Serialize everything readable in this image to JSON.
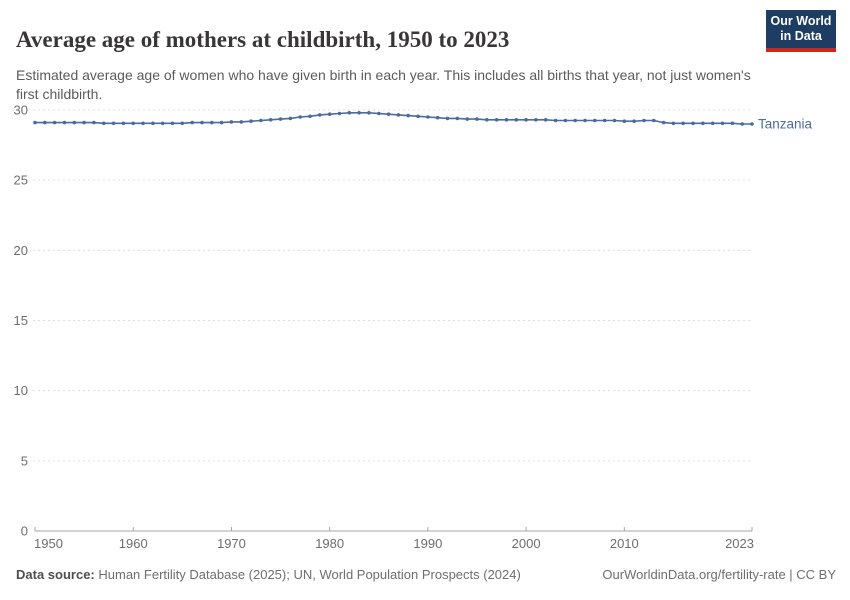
{
  "header": {
    "title": "Average age of mothers at childbirth, 1950 to 2023",
    "subtitle": "Estimated average age of women who have given birth in each year. This includes all births that year, not just women's first childbirth.",
    "logo": {
      "line1": "Our World",
      "line2": "in Data",
      "bg_color": "#1d3d63",
      "accent_color": "#cf2720"
    }
  },
  "chart_data": {
    "type": "line",
    "title": "Average age of mothers at childbirth, 1950 to 2023",
    "subtitle": "Estimated average age of women who have given birth in each year. This includes all births that year, not just women's first childbirth.",
    "xlabel": "",
    "ylabel": "",
    "entity_label": "Tanzania",
    "xlim": [
      1950,
      2023
    ],
    "ylim": [
      0,
      30
    ],
    "xticks": [
      1950,
      1960,
      1970,
      1980,
      1990,
      2000,
      2010,
      2023
    ],
    "yticks": [
      0,
      5,
      10,
      15,
      20,
      25,
      30
    ],
    "grid": "horizontal-dashed",
    "legend_position": "end-of-line-label",
    "series": [
      {
        "name": "Tanzania",
        "color": "#4c6a9e",
        "x": [
          1950,
          1951,
          1952,
          1953,
          1954,
          1955,
          1956,
          1957,
          1958,
          1959,
          1960,
          1961,
          1962,
          1963,
          1964,
          1965,
          1966,
          1967,
          1968,
          1969,
          1970,
          1971,
          1972,
          1973,
          1974,
          1975,
          1976,
          1977,
          1978,
          1979,
          1980,
          1981,
          1982,
          1983,
          1984,
          1985,
          1986,
          1987,
          1988,
          1989,
          1990,
          1991,
          1992,
          1993,
          1994,
          1995,
          1996,
          1997,
          1998,
          1999,
          2000,
          2001,
          2002,
          2003,
          2004,
          2005,
          2006,
          2007,
          2008,
          2009,
          2010,
          2011,
          2012,
          2013,
          2014,
          2015,
          2016,
          2017,
          2018,
          2019,
          2020,
          2021,
          2022,
          2023
        ],
        "values": [
          29.1,
          29.1,
          29.1,
          29.1,
          29.1,
          29.1,
          29.1,
          29.05,
          29.05,
          29.05,
          29.05,
          29.05,
          29.05,
          29.05,
          29.05,
          29.05,
          29.1,
          29.1,
          29.1,
          29.1,
          29.15,
          29.15,
          29.2,
          29.25,
          29.3,
          29.35,
          29.4,
          29.5,
          29.55,
          29.65,
          29.7,
          29.75,
          29.8,
          29.8,
          29.8,
          29.75,
          29.7,
          29.65,
          29.6,
          29.55,
          29.5,
          29.45,
          29.4,
          29.4,
          29.35,
          29.35,
          29.3,
          29.3,
          29.3,
          29.3,
          29.3,
          29.3,
          29.3,
          29.25,
          29.25,
          29.25,
          29.25,
          29.25,
          29.25,
          29.25,
          29.2,
          29.2,
          29.25,
          29.25,
          29.1,
          29.05,
          29.05,
          29.05,
          29.05,
          29.05,
          29.05,
          29.05,
          29.0,
          29.0
        ]
      }
    ],
    "colors": {
      "line": "#4c6a9e",
      "grid": "#dcdcdc",
      "axis": "#a5a5a5",
      "tick_text": "#6e6e6e"
    }
  },
  "footer": {
    "datasource_label": "Data source:",
    "datasource_text": "Human Fertility Database (2025); UN, World Population Prospects (2024)",
    "link": "OurWorldinData.org/fertility-rate | CC BY"
  }
}
